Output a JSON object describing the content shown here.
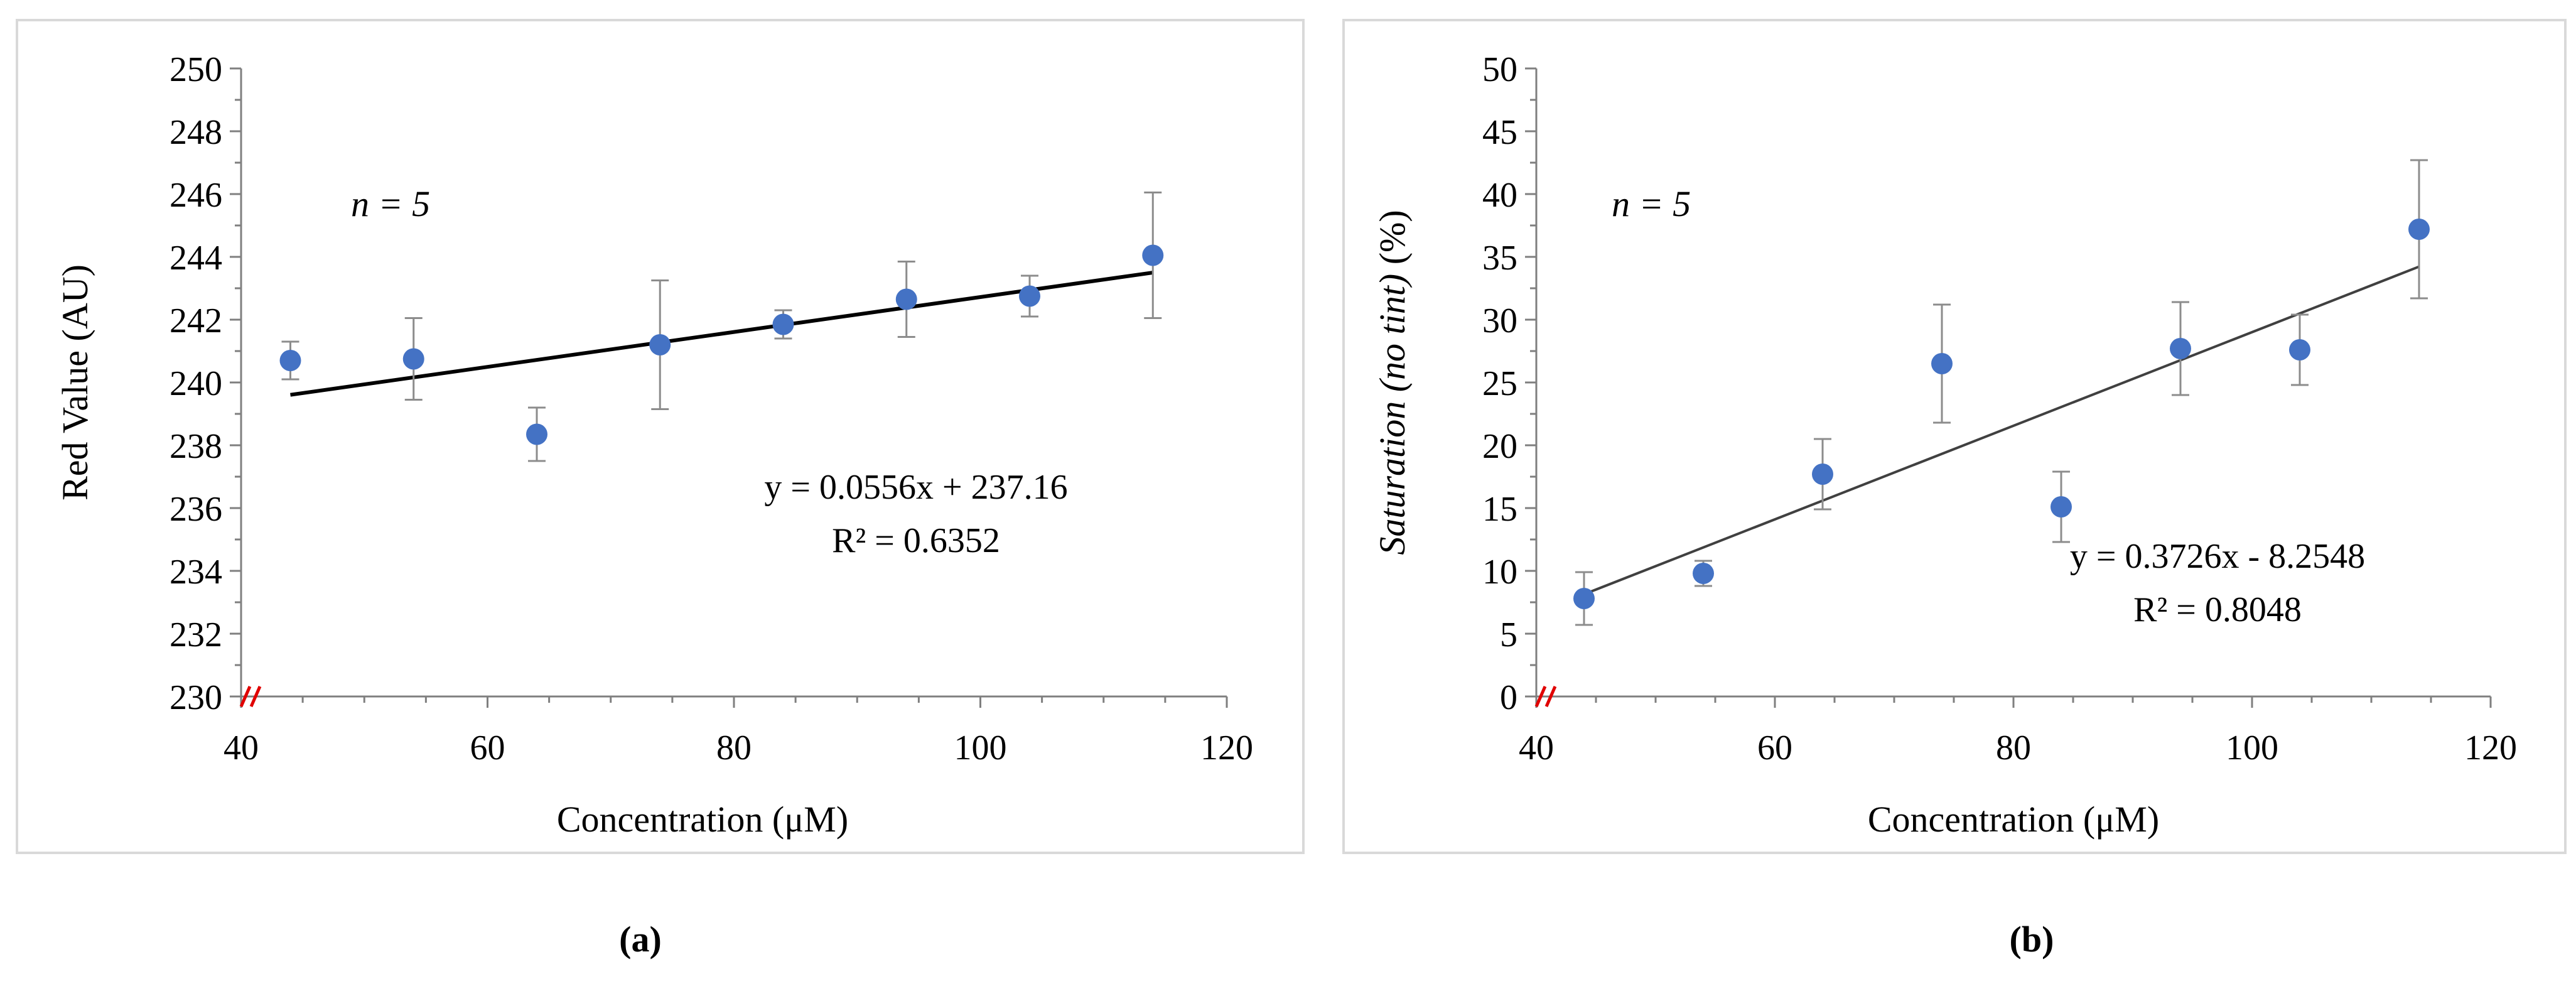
{
  "chart_data": [
    {
      "type": "scatter",
      "panel_label": "(a)",
      "annotation": "n = 5",
      "annotation_parts": {
        "var": "n",
        "rest": " = 5"
      },
      "xlabel": "Concentration (μM)",
      "ylabel": "Red Value (AU)",
      "xlim": [
        40,
        120
      ],
      "ylim": [
        230,
        250
      ],
      "xticks": [
        40,
        60,
        80,
        100,
        120
      ],
      "yticks": [
        230,
        232,
        234,
        236,
        238,
        240,
        242,
        244,
        246,
        248,
        250
      ],
      "grid": false,
      "axis_break": true,
      "marker_color": "#4472c4",
      "series": [
        {
          "name": "Red Value",
          "x": [
            44,
            54,
            64,
            74,
            84,
            94,
            104,
            114
          ],
          "y": [
            240.7,
            240.75,
            238.35,
            241.2,
            241.85,
            242.65,
            242.75,
            244.05
          ],
          "error": [
            0.6,
            1.3,
            0.85,
            2.05,
            0.45,
            1.2,
            0.65,
            2.0
          ]
        }
      ],
      "trendline": {
        "slope": 0.0556,
        "intercept": 237.16,
        "x_range": [
          44,
          114
        ]
      },
      "equation": "y = 0.0556x + 237.16",
      "r_squared": "R² = 0.6352"
    },
    {
      "type": "scatter",
      "panel_label": "(b)",
      "annotation": "n = 5",
      "annotation_parts": {
        "var": "n",
        "rest": " = 5"
      },
      "xlabel": "Concentration (μM)",
      "ylabel": "Saturation (no tint) (%)",
      "ylabel_parts": {
        "italic": "Saturation (no tint)",
        "plain": " (%)"
      },
      "xlim": [
        40,
        120
      ],
      "ylim": [
        0,
        50
      ],
      "xticks": [
        40,
        60,
        80,
        100,
        120
      ],
      "yticks": [
        0,
        5,
        10,
        15,
        20,
        25,
        30,
        35,
        40,
        45,
        50
      ],
      "grid": false,
      "axis_break": true,
      "marker_color": "#4472c4",
      "series": [
        {
          "name": "Saturation",
          "x": [
            44,
            54,
            64,
            74,
            84,
            94,
            104,
            114
          ],
          "y": [
            7.8,
            9.8,
            17.7,
            26.5,
            15.1,
            27.7,
            27.6,
            37.2
          ],
          "error": [
            2.1,
            1.0,
            2.8,
            4.7,
            2.8,
            3.7,
            2.8,
            5.5
          ]
        }
      ],
      "trendline": {
        "slope": 0.3726,
        "intercept": -8.2548,
        "x_range": [
          44,
          114
        ]
      },
      "equation": "y = 0.3726x - 8.2548",
      "r_squared": "R² = 0.8048"
    }
  ]
}
